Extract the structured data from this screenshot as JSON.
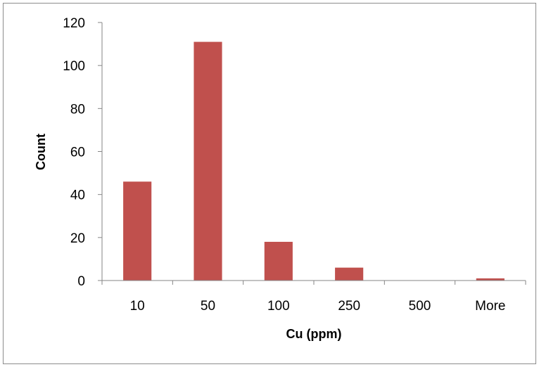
{
  "chart_data": {
    "type": "bar",
    "categories": [
      "10",
      "50",
      "100",
      "250",
      "500",
      "More"
    ],
    "values": [
      46,
      111,
      18,
      6,
      0,
      1
    ],
    "title": "",
    "xlabel": "Cu (ppm)",
    "ylabel": "Count",
    "ylim": [
      0,
      120
    ],
    "yticks": [
      0,
      20,
      40,
      60,
      80,
      100,
      120
    ],
    "grid": false,
    "legend": "none",
    "bar_color": "#c0504d"
  }
}
